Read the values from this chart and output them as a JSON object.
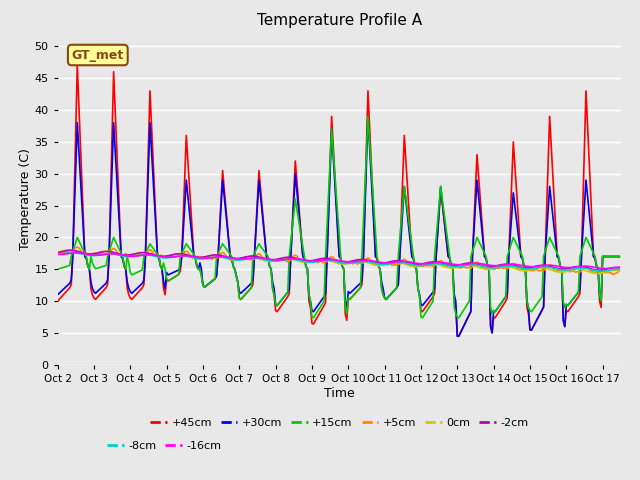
{
  "title": "Temperature Profile A",
  "xlabel": "Time",
  "ylabel": "Temperature (C)",
  "annotation": "GT_met",
  "ylim": [
    0,
    52
  ],
  "background_color": "#e8e8e8",
  "grid_color": "#ffffff",
  "title_fontsize": 11,
  "axis_fontsize": 9,
  "series_labels": [
    "+45cm",
    "+30cm",
    "+15cm",
    "+5cm",
    "0cm",
    "-2cm",
    "-8cm",
    "-16cm"
  ],
  "series_colors": [
    "#ff0000",
    "#0000ee",
    "#00cc00",
    "#ff8800",
    "#cccc00",
    "#bb00bb",
    "#00cccc",
    "#ff00ff"
  ],
  "tick_dates": [
    "Oct 2",
    "Oct 3",
    "Oct 4",
    "Oct 5",
    "Oct 6",
    "Oct 7",
    "Oct 8",
    "Oct 9",
    "Oct 10",
    "Oct 11",
    "Oct 12",
    "Oct 13",
    "Oct 14",
    "Oct 15",
    "Oct 16",
    "Oct 17"
  ],
  "yticks": [
    0,
    5,
    10,
    15,
    20,
    25,
    30,
    35,
    40,
    45,
    50
  ],
  "peaks_45": [
    47,
    46,
    43,
    36,
    30.5,
    30.5,
    32,
    39,
    43,
    36,
    27.5,
    33,
    35,
    39,
    43
  ],
  "mins_45": [
    10,
    10,
    10,
    13,
    12,
    10,
    8,
    6,
    10,
    10,
    8,
    4,
    7,
    5,
    8
  ],
  "peaks_30": [
    38,
    38,
    38,
    29,
    29,
    29,
    30,
    37,
    39,
    28,
    28,
    29,
    27,
    28,
    29
  ],
  "mins_30": [
    11,
    11,
    11,
    14,
    12,
    11,
    9,
    8,
    11,
    10,
    9,
    4,
    8,
    5,
    9
  ],
  "peaks_15": [
    20,
    20,
    19,
    19,
    19,
    19,
    26,
    37,
    39,
    28,
    28,
    20,
    20,
    20,
    20
  ],
  "mins_15": [
    15,
    15,
    14,
    13,
    12,
    10,
    9,
    7,
    10,
    10,
    7,
    7,
    8,
    8,
    9
  ]
}
